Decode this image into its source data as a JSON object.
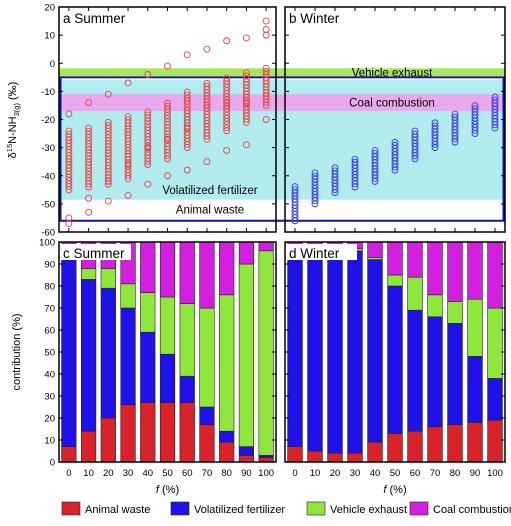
{
  "colors": {
    "animal_waste": "#d8232a",
    "volatilized_fertilizer": "#1f12e6",
    "vehicle_exhaust": "#8fe63c",
    "coal_combustion": "#d31fe0",
    "summer_marker": "#e04848",
    "winter_marker": "#3a3ae0",
    "range_box": "#1010b0",
    "band_fertilizer": "#b3ecef",
    "band_coal": "#eaa8ee",
    "band_vehicle": "#a8e65a"
  },
  "chart_data": [
    {
      "type": "scatter",
      "panel": "a",
      "title": "a Summer",
      "ylabel_prefix": "δ",
      "ylabel_sup": "15",
      "ylabel_mid": "N-NH",
      "ylabel_sub": "3(g)",
      "ylabel_suffix": " (‰)",
      "xlim": [
        -5,
        105
      ],
      "ylim": [
        -60,
        20
      ],
      "yticks": [
        "20",
        "10",
        "0",
        "-10",
        "-20",
        "-30",
        "-40",
        "-50",
        "-60"
      ],
      "source_ranges": [
        {
          "name": "Vehicle exhaust",
          "ymin": -4.5,
          "ymax": -1.8
        },
        {
          "name": "Coal combustion",
          "ymin": -17,
          "ymax": -11
        },
        {
          "name": "Volatilized fertilizer",
          "ymin": -48.5,
          "ymax": -6
        },
        {
          "name": "Animal waste",
          "ymin": -56,
          "ymax": -5
        }
      ],
      "f": [
        0,
        10,
        20,
        30,
        40,
        50,
        60,
        70,
        80,
        90,
        100
      ],
      "dense_min": [
        -45,
        -44,
        -43,
        -41,
        -36,
        -34,
        -30,
        -27,
        -24,
        -21,
        -15
      ],
      "dense_max": [
        -24,
        -23,
        -21,
        -19,
        -17,
        -14,
        -10,
        -7,
        -5,
        -3,
        -1
      ],
      "outliers": [
        [
          -18,
          -35,
          -55,
          -57
        ],
        [
          -14,
          -48,
          -53
        ],
        [
          -11,
          -42,
          -49
        ],
        [
          -7,
          -36,
          -47
        ],
        [
          -4,
          -30,
          -43
        ],
        [
          -1,
          -27,
          -40
        ],
        [
          3,
          -23,
          -38
        ],
        [
          5,
          -15,
          -35
        ],
        [
          8,
          -14,
          -31
        ],
        [
          9,
          -14,
          -29
        ],
        [
          15,
          12,
          10,
          -20
        ]
      ]
    },
    {
      "type": "scatter",
      "panel": "b",
      "title": "b Winter",
      "xlim": [
        -5,
        105
      ],
      "ylim": [
        -60,
        20
      ],
      "f": [
        0,
        10,
        20,
        30,
        40,
        50,
        60,
        70,
        80,
        90,
        100
      ],
      "dense_min": [
        -56,
        -50,
        -46,
        -44,
        -42,
        -38,
        -34,
        -30,
        -28,
        -25,
        -23
      ],
      "dense_max": [
        -43,
        -39,
        -37,
        -34,
        -31,
        -28,
        -24,
        -21,
        -18,
        -15,
        -12
      ]
    },
    {
      "type": "bar",
      "panel": "c",
      "title": "c Summer",
      "stacked": true,
      "xlabel_italic": "f",
      "xlabel_rest": " (%)",
      "ylabel": "contribution (%)",
      "ylim": [
        0,
        100
      ],
      "yticks": [
        "0",
        "10",
        "20",
        "30",
        "40",
        "50",
        "60",
        "70",
        "80",
        "90",
        "100"
      ],
      "categories": [
        "0",
        "10",
        "20",
        "30",
        "40",
        "50",
        "60",
        "70",
        "80",
        "90",
        "100"
      ],
      "series": [
        {
          "name": "Animal waste",
          "values": [
            7,
            14,
            20,
            26,
            27,
            27,
            27,
            17,
            9,
            3,
            2
          ]
        },
        {
          "name": "Volatilized fertilizer",
          "values": [
            86,
            69,
            59,
            44,
            32,
            22,
            12,
            8,
            5,
            4,
            1
          ]
        },
        {
          "name": "Vehicle exhaust",
          "values": [
            1,
            5,
            9,
            11,
            18,
            26,
            33,
            45,
            62,
            83,
            93
          ]
        },
        {
          "name": "Coal combustion",
          "values": [
            6,
            12,
            12,
            19,
            23,
            25,
            28,
            30,
            24,
            10,
            4
          ]
        }
      ]
    },
    {
      "type": "bar",
      "panel": "d",
      "title": "d Winter",
      "stacked": true,
      "xlabel_italic": "f",
      "xlabel_rest": " (%)",
      "ylim": [
        0,
        100
      ],
      "categories": [
        "0",
        "10",
        "20",
        "30",
        "40",
        "50",
        "60",
        "70",
        "80",
        "90",
        "100"
      ],
      "series": [
        {
          "name": "Animal waste",
          "values": [
            7,
            5,
            4,
            4,
            9,
            13,
            14,
            16,
            17,
            18,
            19
          ]
        },
        {
          "name": "Volatilized fertilizer",
          "values": [
            86,
            91,
            92,
            92,
            83,
            67,
            55,
            50,
            46,
            30,
            19
          ]
        },
        {
          "name": "Vehicle exhaust",
          "values": [
            1,
            1,
            1,
            1,
            1,
            5,
            15,
            10,
            10,
            26,
            32
          ]
        },
        {
          "name": "Coal combustion",
          "values": [
            6,
            3,
            3,
            3,
            7,
            15,
            16,
            24,
            27,
            26,
            30
          ]
        }
      ]
    }
  ],
  "legend": [
    "Animal waste",
    "Volatilized fertilizer",
    "Vehicle exhaust",
    "Coal combustion"
  ]
}
